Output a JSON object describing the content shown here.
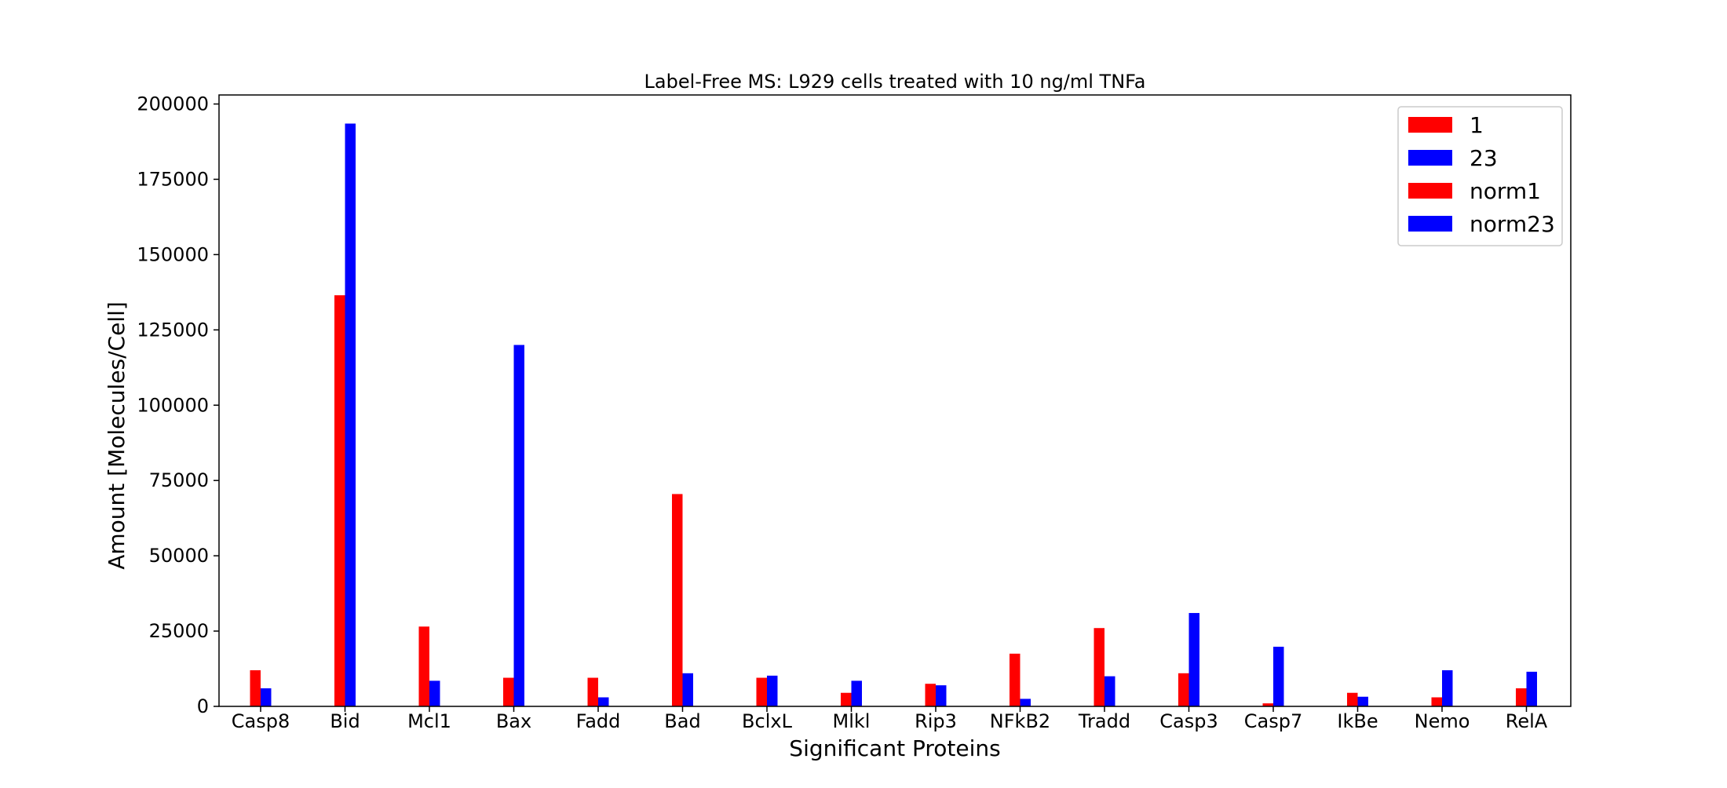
{
  "chart_data": {
    "type": "bar",
    "title": "Label-Free MS: L929 cells treated with 10 ng/ml TNFa",
    "xlabel": "Significant Proteins",
    "ylabel": "Amount [Molecules/Cell]",
    "ylim": [
      0,
      203000
    ],
    "yticks": [
      0,
      25000,
      50000,
      75000,
      100000,
      125000,
      150000,
      175000,
      200000
    ],
    "grid": false,
    "legend_position": "top-right",
    "categories": [
      "Casp8",
      "Bid",
      "Mcl1",
      "Bax",
      "Fadd",
      "Bad",
      "BclxL",
      "Mlkl",
      "Rip3",
      "NFkB2",
      "Tradd",
      "Casp3",
      "Casp7",
      "IkBe",
      "Nemo",
      "RelA"
    ],
    "series": [
      {
        "name": "1",
        "color": "#ff0000",
        "values": [
          12000,
          136500,
          26500,
          9500,
          9500,
          70500,
          9500,
          4500,
          7500,
          17500,
          26000,
          11000,
          1000,
          4500,
          3000,
          6000
        ]
      },
      {
        "name": "23",
        "color": "#0000ff",
        "values": [
          6000,
          193500,
          8500,
          120000,
          3000,
          11000,
          10200,
          8500,
          7000,
          2500,
          10000,
          31000,
          19800,
          3200,
          12000,
          11500
        ]
      },
      {
        "name": "norm1",
        "color": "#ff0000",
        "values": [
          0,
          0,
          0,
          0,
          0,
          0,
          0,
          0,
          0,
          0,
          0,
          0,
          0,
          0,
          0,
          0
        ]
      },
      {
        "name": "norm23",
        "color": "#0000ff",
        "values": [
          0,
          0,
          0,
          0,
          0,
          0,
          0,
          0,
          0,
          0,
          0,
          0,
          0,
          0,
          0,
          0
        ]
      }
    ]
  }
}
